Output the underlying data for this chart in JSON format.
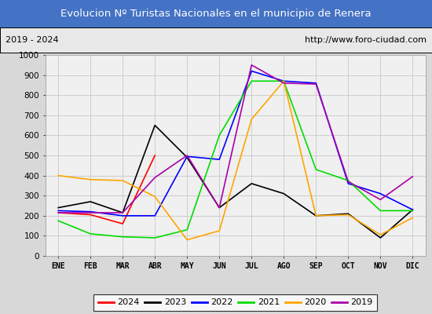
{
  "title": "Evolucion Nº Turistas Nacionales en el municipio de Renera",
  "subtitle_left": "2019 - 2024",
  "subtitle_right": "http://www.foro-ciudad.com",
  "months": [
    "ENE",
    "FEB",
    "MAR",
    "ABR",
    "MAY",
    "JUN",
    "JUL",
    "AGO",
    "SEP",
    "OCT",
    "NOV",
    "DIC"
  ],
  "ylim": [
    0,
    1000
  ],
  "yticks": [
    0,
    100,
    200,
    300,
    400,
    500,
    600,
    700,
    800,
    900,
    1000
  ],
  "series": {
    "2024": {
      "color": "red",
      "data": [
        215,
        205,
        160,
        500,
        null,
        null,
        null,
        null,
        null,
        null,
        null,
        null
      ]
    },
    "2023": {
      "color": "black",
      "data": [
        240,
        270,
        215,
        650,
        490,
        240,
        360,
        310,
        200,
        210,
        90,
        230
      ]
    },
    "2022": {
      "color": "blue",
      "data": [
        225,
        220,
        200,
        200,
        495,
        480,
        920,
        870,
        860,
        360,
        310,
        230
      ]
    },
    "2021": {
      "color": "#00dd00",
      "data": [
        175,
        110,
        95,
        90,
        130,
        600,
        870,
        870,
        430,
        375,
        225,
        225
      ]
    },
    "2020": {
      "color": "orange",
      "data": [
        400,
        380,
        375,
        295,
        80,
        125,
        680,
        870,
        200,
        205,
        105,
        190
      ]
    },
    "2019": {
      "color": "#aa00aa",
      "data": [
        215,
        215,
        215,
        390,
        500,
        240,
        950,
        860,
        855,
        370,
        280,
        395
      ]
    }
  },
  "legend_order": [
    "2024",
    "2023",
    "2022",
    "2021",
    "2020",
    "2019"
  ],
  "title_bg_color": "#4472c4",
  "subtitle_bg_color": "#e8e8e8",
  "plot_bg_color": "#f0f0f0",
  "fig_bg_color": "#d8d8d8",
  "grid_color": "#c8c8c8"
}
